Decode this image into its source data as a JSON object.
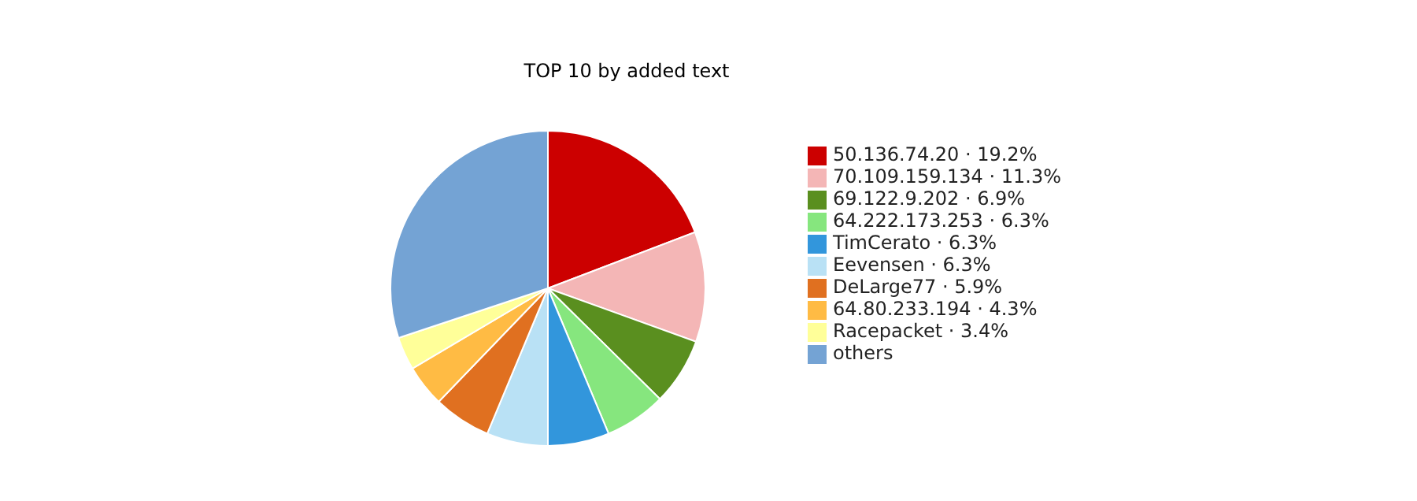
{
  "chart_data": {
    "type": "pie",
    "title": "TOP 10 by added text",
    "categories": [
      "50.136.74.20 · 19.2%",
      "70.109.159.134 · 11.3%",
      "69.122.9.202 · 6.9%",
      "64.222.173.253 · 6.3%",
      "TimCerato · 6.3%",
      "Eevensen · 6.3%",
      "DeLarge77 · 5.9%",
      "64.80.233.194 · 4.3%",
      "Racepacket · 3.4%",
      "others"
    ],
    "values": [
      19.2,
      11.3,
      6.9,
      6.3,
      6.3,
      6.3,
      5.9,
      4.3,
      3.4,
      30.1
    ],
    "colors": [
      "#cc0000",
      "#f4b6b6",
      "#5a8f1f",
      "#86e67e",
      "#3296dc",
      "#b9e1f5",
      "#e07020",
      "#ffbb44",
      "#ffff99",
      "#74a3d4"
    ],
    "legend": "right"
  }
}
